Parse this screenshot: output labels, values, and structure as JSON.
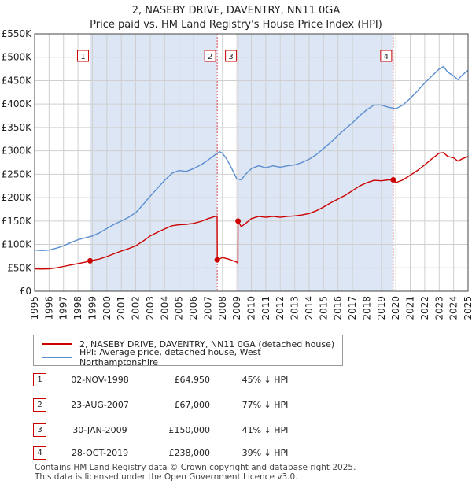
{
  "title": "2, NASEBY DRIVE, DAVENTRY, NN11 0GA",
  "subtitle": "Price paid vs. HM Land Registry's House Price Index (HPI)",
  "colors": {
    "property": "#cc0000",
    "hpi": "#5b8fd0",
    "shade": "#dde6f5",
    "grid": "#cfcfcf",
    "axis": "#222222"
  },
  "chart_data": {
    "type": "line",
    "xlim": [
      1995,
      2025
    ],
    "ylim": [
      0,
      550000
    ],
    "x_ticks": [
      1995,
      1996,
      1997,
      1998,
      1999,
      2000,
      2001,
      2002,
      2003,
      2004,
      2005,
      2006,
      2007,
      2008,
      2009,
      2010,
      2011,
      2012,
      2013,
      2014,
      2015,
      2016,
      2017,
      2018,
      2019,
      2020,
      2021,
      2022,
      2023,
      2024,
      2025
    ],
    "y_ticks": [
      {
        "value": 0,
        "label": "£0"
      },
      {
        "value": 50000,
        "label": "£50K"
      },
      {
        "value": 100000,
        "label": "£100K"
      },
      {
        "value": 150000,
        "label": "£150K"
      },
      {
        "value": 200000,
        "label": "£200K"
      },
      {
        "value": 250000,
        "label": "£250K"
      },
      {
        "value": 300000,
        "label": "£300K"
      },
      {
        "value": 350000,
        "label": "£350K"
      },
      {
        "value": 400000,
        "label": "£400K"
      },
      {
        "value": 450000,
        "label": "£450K"
      },
      {
        "value": 500000,
        "label": "£500K"
      },
      {
        "value": 550000,
        "label": "£550K"
      }
    ],
    "shaded_periods": [
      [
        1998.84,
        2007.64
      ],
      [
        2009.08,
        2019.82
      ]
    ],
    "series": [
      {
        "name": "2, NASEBY DRIVE, DAVENTRY, NN11 0GA (detached house)",
        "color": "#cc0000",
        "points": [
          [
            1995.0,
            48000
          ],
          [
            1995.5,
            47500
          ],
          [
            1996.0,
            48000
          ],
          [
            1996.5,
            50000
          ],
          [
            1997.0,
            53000
          ],
          [
            1997.5,
            56000
          ],
          [
            1998.0,
            59000
          ],
          [
            1998.5,
            62000
          ],
          [
            1998.84,
            64950
          ],
          [
            1999.5,
            69000
          ],
          [
            2000.0,
            74000
          ],
          [
            2000.5,
            80000
          ],
          [
            2001.0,
            86000
          ],
          [
            2001.5,
            91000
          ],
          [
            2002.0,
            97000
          ],
          [
            2002.5,
            107000
          ],
          [
            2003.0,
            118000
          ],
          [
            2003.5,
            126000
          ],
          [
            2004.0,
            133000
          ],
          [
            2004.5,
            140000
          ],
          [
            2005.0,
            142000
          ],
          [
            2005.5,
            143000
          ],
          [
            2006.0,
            145000
          ],
          [
            2006.5,
            149000
          ],
          [
            2007.0,
            155000
          ],
          [
            2007.5,
            160000
          ],
          [
            2007.63,
            161000
          ],
          [
            2007.64,
            67000
          ],
          [
            2008.0,
            72000
          ],
          [
            2008.5,
            68000
          ],
          [
            2009.0,
            62000
          ],
          [
            2009.07,
            60000
          ],
          [
            2009.08,
            150000
          ],
          [
            2009.3,
            138000
          ],
          [
            2009.6,
            145000
          ],
          [
            2010.0,
            155000
          ],
          [
            2010.5,
            160000
          ],
          [
            2011.0,
            158000
          ],
          [
            2011.5,
            160000
          ],
          [
            2012.0,
            158000
          ],
          [
            2012.5,
            160000
          ],
          [
            2013.0,
            161000
          ],
          [
            2013.5,
            163000
          ],
          [
            2014.0,
            166000
          ],
          [
            2014.5,
            172000
          ],
          [
            2015.0,
            180000
          ],
          [
            2015.5,
            189000
          ],
          [
            2016.0,
            197000
          ],
          [
            2016.5,
            205000
          ],
          [
            2017.0,
            215000
          ],
          [
            2017.5,
            225000
          ],
          [
            2018.0,
            232000
          ],
          [
            2018.5,
            237000
          ],
          [
            2019.0,
            236000
          ],
          [
            2019.5,
            238000
          ],
          [
            2019.82,
            238000
          ],
          [
            2020.0,
            232000
          ],
          [
            2020.5,
            238000
          ],
          [
            2021.0,
            248000
          ],
          [
            2021.5,
            258000
          ],
          [
            2022.0,
            270000
          ],
          [
            2022.5,
            283000
          ],
          [
            2023.0,
            295000
          ],
          [
            2023.3,
            296000
          ],
          [
            2023.6,
            288000
          ],
          [
            2024.0,
            285000
          ],
          [
            2024.3,
            278000
          ],
          [
            2024.6,
            283000
          ],
          [
            2025.0,
            288000
          ]
        ]
      },
      {
        "name": "HPI: Average price, detached house, West Northamptonshire",
        "color": "#5b8fd0",
        "points": [
          [
            1995.0,
            88000
          ],
          [
            1995.5,
            87000
          ],
          [
            1996.0,
            88000
          ],
          [
            1996.5,
            92000
          ],
          [
            1997.0,
            97000
          ],
          [
            1997.5,
            104000
          ],
          [
            1998.0,
            110000
          ],
          [
            1998.5,
            114000
          ],
          [
            1999.0,
            118000
          ],
          [
            1999.5,
            125000
          ],
          [
            2000.0,
            134000
          ],
          [
            2000.5,
            143000
          ],
          [
            2001.0,
            150000
          ],
          [
            2001.5,
            158000
          ],
          [
            2002.0,
            168000
          ],
          [
            2002.5,
            185000
          ],
          [
            2003.0,
            203000
          ],
          [
            2003.5,
            220000
          ],
          [
            2004.0,
            237000
          ],
          [
            2004.5,
            252000
          ],
          [
            2005.0,
            258000
          ],
          [
            2005.5,
            256000
          ],
          [
            2006.0,
            262000
          ],
          [
            2006.5,
            270000
          ],
          [
            2007.0,
            280000
          ],
          [
            2007.5,
            292000
          ],
          [
            2007.8,
            298000
          ],
          [
            2008.0,
            295000
          ],
          [
            2008.3,
            282000
          ],
          [
            2008.6,
            265000
          ],
          [
            2009.0,
            240000
          ],
          [
            2009.3,
            238000
          ],
          [
            2009.6,
            250000
          ],
          [
            2010.0,
            262000
          ],
          [
            2010.5,
            268000
          ],
          [
            2011.0,
            264000
          ],
          [
            2011.5,
            268000
          ],
          [
            2012.0,
            265000
          ],
          [
            2012.5,
            268000
          ],
          [
            2013.0,
            270000
          ],
          [
            2013.5,
            275000
          ],
          [
            2014.0,
            282000
          ],
          [
            2014.5,
            292000
          ],
          [
            2015.0,
            305000
          ],
          [
            2015.5,
            318000
          ],
          [
            2016.0,
            333000
          ],
          [
            2016.5,
            347000
          ],
          [
            2017.0,
            360000
          ],
          [
            2017.5,
            375000
          ],
          [
            2018.0,
            388000
          ],
          [
            2018.5,
            398000
          ],
          [
            2019.0,
            398000
          ],
          [
            2019.5,
            393000
          ],
          [
            2020.0,
            390000
          ],
          [
            2020.5,
            398000
          ],
          [
            2021.0,
            412000
          ],
          [
            2021.5,
            428000
          ],
          [
            2022.0,
            445000
          ],
          [
            2022.5,
            460000
          ],
          [
            2023.0,
            475000
          ],
          [
            2023.3,
            480000
          ],
          [
            2023.6,
            468000
          ],
          [
            2024.0,
            460000
          ],
          [
            2024.3,
            452000
          ],
          [
            2024.6,
            462000
          ],
          [
            2025.0,
            472000
          ]
        ]
      }
    ],
    "sales": [
      {
        "n": "1",
        "x": 1998.84,
        "price": 64950
      },
      {
        "n": "2",
        "x": 2007.64,
        "price": 67000
      },
      {
        "n": "3",
        "x": 2009.08,
        "price": 150000
      },
      {
        "n": "4",
        "x": 2019.82,
        "price": 238000
      }
    ]
  },
  "legend": {
    "property_label": "2, NASEBY DRIVE, DAVENTRY, NN11 0GA (detached house)",
    "hpi_label": "HPI: Average price, detached house, West Northamptonshire"
  },
  "table": [
    {
      "n": "1",
      "date": "02-NOV-1998",
      "price": "£64,950",
      "hpi": "45% ↓ HPI"
    },
    {
      "n": "2",
      "date": "23-AUG-2007",
      "price": "£67,000",
      "hpi": "77% ↓ HPI"
    },
    {
      "n": "3",
      "date": "30-JAN-2009",
      "price": "£150,000",
      "hpi": "41% ↓ HPI"
    },
    {
      "n": "4",
      "date": "28-OCT-2019",
      "price": "£238,000",
      "hpi": "39% ↓ HPI"
    }
  ],
  "footer": {
    "line1": "Contains HM Land Registry data © Crown copyright and database right 2025.",
    "line2": "This data is licensed under the Open Government Licence v3.0."
  }
}
